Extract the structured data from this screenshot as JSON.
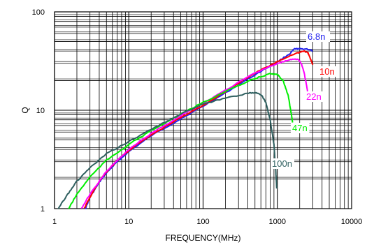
{
  "chart_data": {
    "type": "line",
    "title": "",
    "xlabel": "FREQUENCY(MHz)",
    "ylabel": "Q",
    "x_scale": "log",
    "y_scale": "log",
    "xlim": [
      1,
      10000
    ],
    "ylim": [
      1,
      100
    ],
    "x_tick_labels": [
      "1",
      "10",
      "100",
      "1000",
      "10000"
    ],
    "y_tick_labels": [
      "1",
      "10",
      "100"
    ],
    "grid": true,
    "legend": "inline labels at line ends",
    "series": [
      {
        "name": "6.8n",
        "color": "#2222ee",
        "label_bg": "#ffffff",
        "points": [
          [
            2.6,
            1.0
          ],
          [
            3,
            1.3
          ],
          [
            4,
            1.85
          ],
          [
            5,
            2.3
          ],
          [
            7,
            3.0
          ],
          [
            10,
            3.8
          ],
          [
            20,
            5.5
          ],
          [
            50,
            8.2
          ],
          [
            100,
            11
          ],
          [
            200,
            15
          ],
          [
            500,
            23
          ],
          [
            1000,
            31
          ],
          [
            1500,
            38
          ],
          [
            1700,
            42
          ],
          [
            2000,
            42
          ],
          [
            2500,
            42
          ],
          [
            3000,
            40
          ]
        ]
      },
      {
        "name": "10n",
        "color": "#ff0000",
        "label_bg": "#ffffff",
        "points": [
          [
            2.5,
            1.0
          ],
          [
            3,
            1.3
          ],
          [
            4,
            1.9
          ],
          [
            5,
            2.35
          ],
          [
            7,
            3.1
          ],
          [
            10,
            3.9
          ],
          [
            20,
            5.6
          ],
          [
            50,
            8.4
          ],
          [
            100,
            11.2
          ],
          [
            200,
            15.5
          ],
          [
            500,
            24
          ],
          [
            1000,
            31
          ],
          [
            1500,
            36
          ],
          [
            2000,
            39
          ],
          [
            2300,
            40
          ],
          [
            2600,
            38
          ],
          [
            2800,
            33
          ],
          [
            3000,
            29
          ]
        ]
      },
      {
        "name": "22n",
        "color": "#ff00ff",
        "label_bg": "#ffffff",
        "points": [
          [
            2.3,
            1.0
          ],
          [
            3,
            1.4
          ],
          [
            5,
            2.4
          ],
          [
            10,
            4.0
          ],
          [
            20,
            5.8
          ],
          [
            50,
            8.8
          ],
          [
            100,
            11.8
          ],
          [
            200,
            16
          ],
          [
            500,
            24
          ],
          [
            1000,
            30
          ],
          [
            1500,
            32.5
          ],
          [
            1900,
            33
          ],
          [
            2100,
            30
          ],
          [
            2300,
            24
          ],
          [
            2500,
            17
          ],
          [
            2600,
            14
          ]
        ]
      },
      {
        "name": "47n",
        "color": "#00ee00",
        "label_bg": "#ffffff",
        "points": [
          [
            1.55,
            1.0
          ],
          [
            2,
            1.4
          ],
          [
            3,
            2.1
          ],
          [
            5,
            3.1
          ],
          [
            10,
            4.5
          ],
          [
            20,
            6.2
          ],
          [
            50,
            9.1
          ],
          [
            100,
            12
          ],
          [
            200,
            15.5
          ],
          [
            500,
            21
          ],
          [
            800,
            23.5
          ],
          [
            1000,
            23
          ],
          [
            1200,
            20
          ],
          [
            1400,
            14
          ],
          [
            1550,
            9
          ],
          [
            1600,
            7.5
          ]
        ]
      },
      {
        "name": "100n",
        "color": "#2f6060",
        "label_bg": "#ffffff",
        "points": [
          [
            1.12,
            1.0
          ],
          [
            1.5,
            1.4
          ],
          [
            2,
            1.9
          ],
          [
            3,
            2.6
          ],
          [
            5,
            3.6
          ],
          [
            10,
            4.8
          ],
          [
            20,
            6.4
          ],
          [
            50,
            9.2
          ],
          [
            100,
            11.5
          ],
          [
            200,
            13.3
          ],
          [
            400,
            14.8
          ],
          [
            500,
            15.2
          ],
          [
            600,
            14.5
          ],
          [
            700,
            12
          ],
          [
            800,
            8
          ],
          [
            900,
            4.5
          ],
          [
            950,
            2.5
          ],
          [
            980,
            1.6
          ]
        ]
      }
    ]
  }
}
